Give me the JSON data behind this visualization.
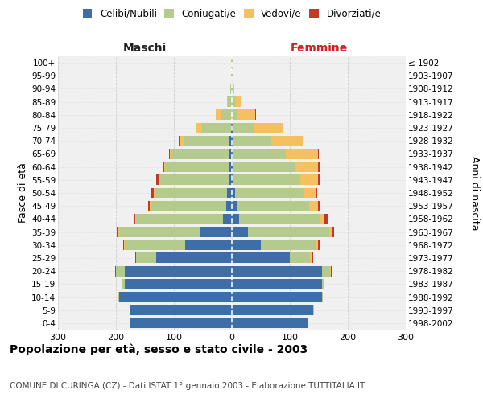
{
  "age_groups": [
    "0-4",
    "5-9",
    "10-14",
    "15-19",
    "20-24",
    "25-29",
    "30-34",
    "35-39",
    "40-44",
    "45-49",
    "50-54",
    "55-59",
    "60-64",
    "65-69",
    "70-74",
    "75-79",
    "80-84",
    "85-89",
    "90-94",
    "95-99",
    "100+"
  ],
  "birth_years": [
    "1998-2002",
    "1993-1997",
    "1988-1992",
    "1983-1987",
    "1978-1982",
    "1973-1977",
    "1968-1972",
    "1963-1967",
    "1958-1962",
    "1953-1957",
    "1948-1952",
    "1943-1947",
    "1938-1942",
    "1933-1937",
    "1928-1932",
    "1923-1927",
    "1918-1922",
    "1913-1917",
    "1908-1912",
    "1903-1907",
    "≤ 1902"
  ],
  "male": {
    "celibi": [
      175,
      175,
      195,
      185,
      185,
      130,
      80,
      55,
      15,
      10,
      8,
      5,
      5,
      4,
      4,
      2,
      0,
      0,
      0,
      0,
      0
    ],
    "coniugati": [
      0,
      1,
      2,
      4,
      15,
      35,
      105,
      140,
      150,
      130,
      125,
      120,
      110,
      100,
      80,
      50,
      20,
      7,
      3,
      1,
      1
    ],
    "vedovi": [
      0,
      0,
      0,
      0,
      0,
      0,
      1,
      1,
      1,
      1,
      2,
      2,
      2,
      3,
      5,
      10,
      8,
      2,
      0,
      0,
      0
    ],
    "divorziati": [
      0,
      0,
      0,
      0,
      1,
      1,
      2,
      3,
      4,
      4,
      4,
      3,
      1,
      2,
      3,
      0,
      0,
      0,
      0,
      0,
      0
    ]
  },
  "female": {
    "nubili": [
      130,
      140,
      155,
      155,
      155,
      100,
      50,
      28,
      12,
      8,
      5,
      3,
      3,
      3,
      3,
      2,
      0,
      0,
      0,
      0,
      0
    ],
    "coniugate": [
      0,
      1,
      2,
      4,
      15,
      35,
      95,
      140,
      140,
      125,
      120,
      115,
      105,
      90,
      65,
      35,
      10,
      5,
      2,
      1,
      1
    ],
    "vedove": [
      0,
      0,
      0,
      0,
      1,
      2,
      3,
      5,
      8,
      15,
      20,
      30,
      40,
      55,
      55,
      50,
      30,
      10,
      2,
      0,
      0
    ],
    "divorziate": [
      0,
      0,
      0,
      0,
      2,
      3,
      3,
      4,
      5,
      4,
      2,
      3,
      3,
      2,
      0,
      0,
      1,
      1,
      0,
      0,
      0
    ]
  },
  "colors": {
    "celibi": "#3d6ea8",
    "coniugati": "#b5cb8e",
    "vedovi": "#f5c060",
    "divorziati": "#c0392b"
  },
  "xlim": 300,
  "title": "Popolazione per età, sesso e stato civile - 2003",
  "subtitle": "COMUNE DI CURINGA (CZ) - Dati ISTAT 1° gennaio 2003 - Elaborazione TUTTITALIA.IT",
  "ylabel_left": "Fasce di età",
  "ylabel_right": "Anni di nascita",
  "xlabel_left": "Maschi",
  "xlabel_right": "Femmine",
  "legend_labels": [
    "Celibi/Nubili",
    "Coniugati/e",
    "Vedovi/e",
    "Divorziati/e"
  ],
  "bg_color": "#ffffff",
  "plot_bg": "#f0f0f0",
  "grid_color": "#cccccc"
}
